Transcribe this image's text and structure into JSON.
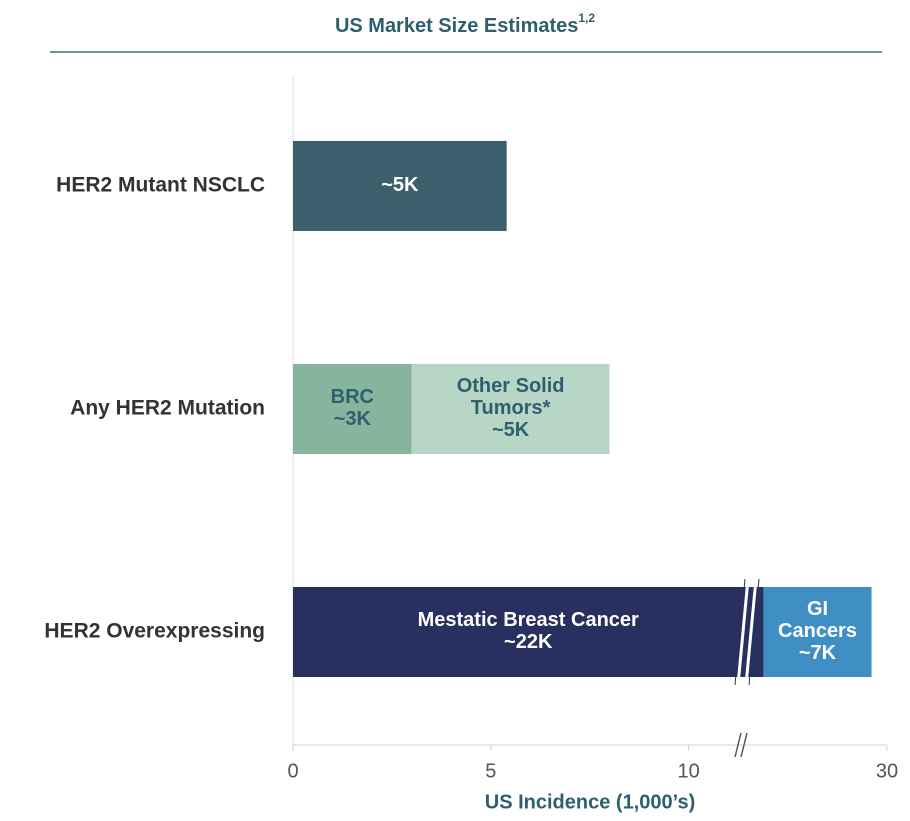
{
  "chart_data": {
    "type": "bar",
    "orientation": "horizontal",
    "stacked": true,
    "title": "US Market Size Estimates",
    "title_superscript": "1,2",
    "xlabel": "US Incidence (1,000’s)",
    "categories": [
      "HER2 Mutant NSCLC",
      "Any HER2 Mutation",
      "HER2 Overexpressing"
    ],
    "series": [
      {
        "values": [
          5.4,
          3,
          22
        ],
        "colors": [
          "#3b5f6b",
          "#86b49c",
          "#27305e"
        ],
        "label_colors": [
          "#ffffff",
          "#2f5f6e",
          "#ffffff"
        ],
        "value_labels": [
          [
            "~5K"
          ],
          [
            "BRC",
            "~3K"
          ],
          [
            "Mestatic Breast Cancer",
            "~22K"
          ]
        ]
      },
      {
        "values": [
          null,
          5,
          7
        ],
        "colors": [
          null,
          "#b7d6c6",
          "#3f8fc4"
        ],
        "label_colors": [
          null,
          "#2f5f6e",
          "#ffffff"
        ],
        "value_labels": [
          null,
          [
            "Other Solid",
            "Tumors*",
            "~5K"
          ],
          [
            "GI",
            "Cancers",
            "~7K"
          ]
        ]
      }
    ],
    "xlim": [
      0,
      30
    ],
    "xticks": [
      0,
      5,
      10,
      30
    ],
    "axis_break": [
      11.5,
      21
    ]
  }
}
